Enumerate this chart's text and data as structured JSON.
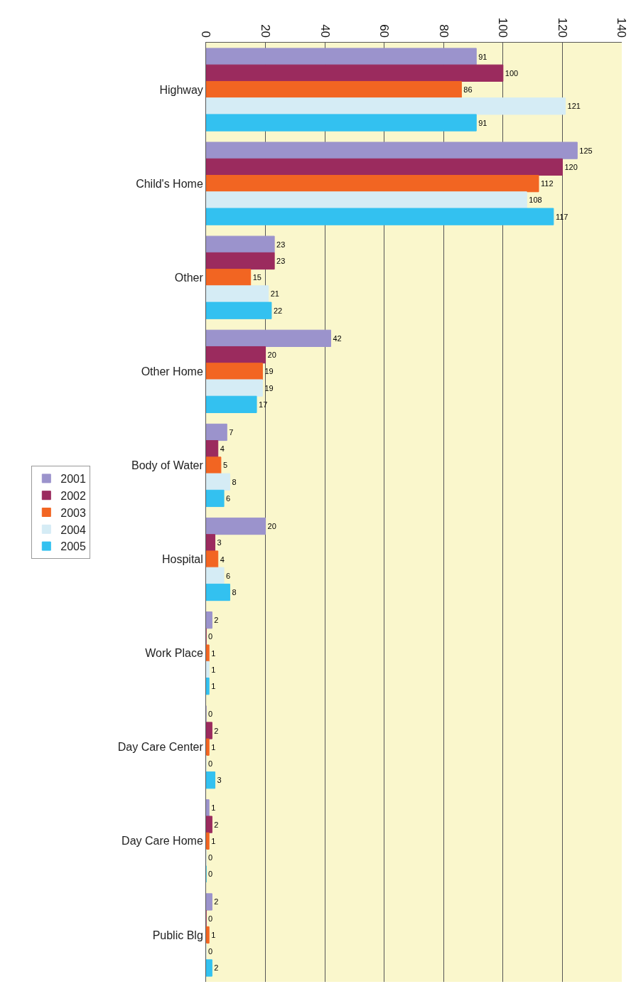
{
  "chart_data": {
    "type": "bar",
    "orientation": "horizontal",
    "categories": [
      "Highway",
      "Child's Home",
      "Other",
      "Other Home",
      "Body of Water",
      "Hospital",
      "Work Place",
      "Day Care Center",
      "Day Care Home",
      "Public Blg"
    ],
    "series": [
      {
        "name": "2001",
        "color": "#9b93cc",
        "values": [
          91,
          125,
          23,
          42,
          7,
          20,
          2,
          0,
          1,
          2
        ]
      },
      {
        "name": "2002",
        "color": "#9b2b5e",
        "values": [
          100,
          120,
          23,
          20,
          4,
          3,
          0,
          2,
          2,
          0
        ]
      },
      {
        "name": "2003",
        "color": "#f26522",
        "values": [
          86,
          112,
          15,
          19,
          5,
          4,
          1,
          1,
          1,
          1
        ]
      },
      {
        "name": "2004",
        "color": "#d5ecf5",
        "values": [
          121,
          108,
          21,
          19,
          8,
          6,
          1,
          0,
          0,
          0
        ]
      },
      {
        "name": "2005",
        "color": "#33c1f0",
        "values": [
          91,
          117,
          22,
          17,
          6,
          8,
          1,
          3,
          0,
          2
        ]
      }
    ],
    "xlim": [
      0,
      140
    ],
    "xticks": [
      0,
      20,
      40,
      60,
      80,
      100,
      120,
      140
    ],
    "grid": "x",
    "legend": "left",
    "data_labels": true
  }
}
